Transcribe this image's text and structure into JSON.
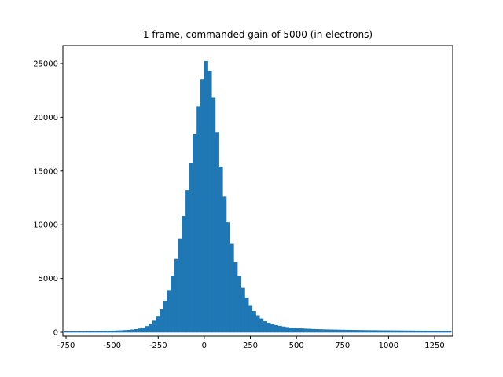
{
  "chart_data": {
    "type": "histogram",
    "title": "1 frame, commanded gain of 5000 (in electrons)",
    "color": "#1f77b4",
    "bins": [
      -760,
      -740,
      -720,
      -700,
      -680,
      -660,
      -640,
      -620,
      -600,
      -580,
      -560,
      -540,
      -520,
      -500,
      -480,
      -460,
      -440,
      -420,
      -400,
      -380,
      -360,
      -340,
      -320,
      -300,
      -280,
      -260,
      -240,
      -220,
      -200,
      -180,
      -160,
      -140,
      -120,
      -100,
      -80,
      -60,
      -40,
      -20,
      0,
      20,
      40,
      60,
      80,
      100,
      120,
      140,
      160,
      180,
      200,
      220,
      240,
      260,
      280,
      300,
      320,
      340,
      360,
      380,
      400,
      420,
      440,
      460,
      480,
      500,
      520,
      540,
      560,
      580,
      600,
      620,
      640,
      660,
      680,
      700,
      720,
      740,
      760,
      780,
      800,
      820,
      840,
      860,
      880,
      900,
      920,
      940,
      960,
      980,
      1000,
      1020,
      1040,
      1060,
      1080,
      1100,
      1120,
      1140,
      1160,
      1180,
      1200,
      1220,
      1240,
      1260,
      1280,
      1300,
      1320,
      1340
    ],
    "counts": [
      60,
      60,
      65,
      65,
      70,
      75,
      80,
      85,
      90,
      95,
      100,
      110,
      120,
      130,
      145,
      160,
      180,
      200,
      230,
      270,
      330,
      420,
      550,
      750,
      1050,
      1500,
      2100,
      2900,
      3900,
      5200,
      6800,
      8700,
      10800,
      13200,
      15700,
      18400,
      21000,
      23500,
      25200,
      24300,
      21800,
      18600,
      15400,
      12600,
      10200,
      8200,
      6500,
      5200,
      4100,
      3200,
      2500,
      1950,
      1550,
      1250,
      1000,
      850,
      730,
      640,
      570,
      510,
      460,
      420,
      390,
      360,
      335,
      315,
      300,
      285,
      270,
      260,
      250,
      240,
      232,
      225,
      218,
      212,
      206,
      200,
      195,
      190,
      185,
      180,
      176,
      172,
      168,
      164,
      160,
      157,
      154,
      151,
      148,
      145,
      142,
      139,
      136,
      133,
      130,
      128,
      126,
      124,
      122,
      120,
      118,
      116,
      114
    ],
    "xlim": [
      -767,
      1348
    ],
    "ylim": [
      -365,
      26680
    ],
    "xticks": [
      -750,
      -500,
      -250,
      0,
      250,
      500,
      750,
      1000,
      1250
    ],
    "yticks": [
      0,
      5000,
      10000,
      15000,
      20000,
      25000
    ]
  }
}
